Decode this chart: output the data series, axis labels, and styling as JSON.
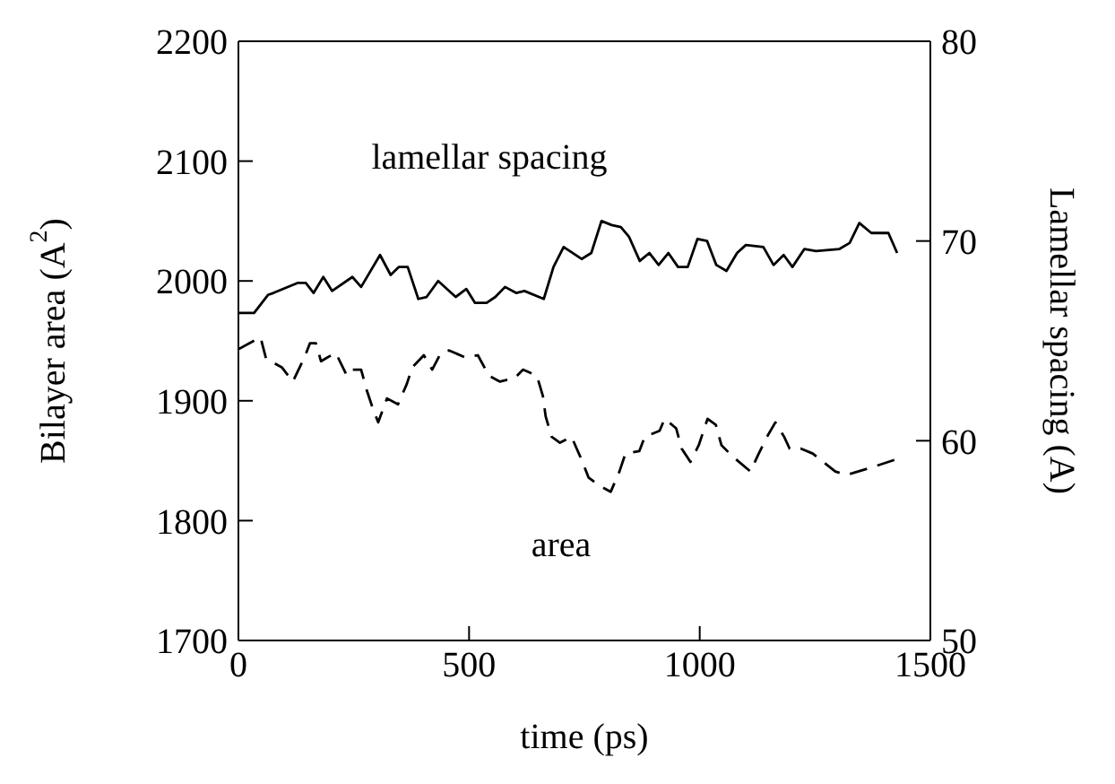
{
  "chart_data": {
    "type": "line",
    "xlabel": "time (ps)",
    "ylabel": "Bilayer area (A$^{2}$)",
    "y2label": "Lamellar spacing (A)",
    "xlim": [
      0,
      1500
    ],
    "xticks": [
      0,
      500,
      1000,
      1500
    ],
    "ylim": [
      1700,
      2200
    ],
    "yticks": [
      1700,
      1800,
      1900,
      2000,
      2100,
      2200
    ],
    "y2lim": [
      50,
      80
    ],
    "y2ticks": [
      50,
      60,
      70,
      80
    ],
    "grid": false,
    "legend": false,
    "marker": "none",
    "series": [
      {
        "axis": "y2",
        "color": "#000000",
        "line_style": "solid",
        "x": [
          0,
          34,
          64,
          76,
          128,
          146,
          163,
          184,
          203,
          247,
          266,
          307,
          330,
          348,
          367,
          390,
          408,
          433,
          471,
          494,
          513,
          538,
          557,
          578,
          602,
          620,
          662,
          683,
          705,
          744,
          765,
          787,
          809,
          829,
          847,
          870,
          891,
          911,
          932,
          953,
          974,
          995,
          1016,
          1036,
          1058,
          1081,
          1100,
          1138,
          1160,
          1182,
          1201,
          1227,
          1252,
          1303,
          1325,
          1346,
          1372,
          1409,
          1428
        ],
        "values": [
          66.4,
          66.4,
          67.3,
          67.4,
          67.9,
          67.9,
          67.4,
          68.2,
          67.5,
          68.2,
          67.7,
          69.3,
          68.3,
          68.7,
          68.7,
          67.1,
          67.2,
          68.0,
          67.2,
          67.6,
          66.9,
          66.9,
          67.2,
          67.7,
          67.4,
          67.5,
          67.1,
          68.7,
          69.7,
          69.1,
          69.4,
          71.0,
          70.8,
          70.7,
          70.2,
          69.0,
          69.4,
          68.8,
          69.4,
          68.7,
          68.7,
          70.1,
          70.0,
          68.8,
          68.5,
          69.4,
          69.8,
          69.7,
          68.8,
          69.3,
          68.7,
          69.6,
          69.5,
          69.6,
          69.9,
          70.9,
          70.4,
          70.4,
          69.4
        ]
      },
      {
        "axis": "y",
        "color": "#000000",
        "line_style": "dashed",
        "x": [
          0,
          48,
          60,
          94,
          118,
          143,
          155,
          168,
          179,
          192,
          211,
          235,
          248,
          266,
          278,
          291,
          303,
          322,
          346,
          365,
          377,
          402,
          420,
          439,
          457,
          493,
          519,
          543,
          567,
          599,
          617,
          647,
          660,
          666,
          679,
          697,
          722,
          746,
          759,
          783,
          807,
          826,
          839,
          869,
          881,
          913,
          924,
          949,
          961,
          980,
          998,
          1017,
          1035,
          1047,
          1073,
          1110,
          1128,
          1146,
          1164,
          1183,
          1195,
          1220,
          1245,
          1294,
          1318,
          1361,
          1425
        ],
        "values": [
          1943,
          1953,
          1935,
          1928,
          1916,
          1936,
          1948,
          1948,
          1933,
          1936,
          1940,
          1921,
          1926,
          1926,
          1909,
          1894,
          1882,
          1902,
          1897,
          1914,
          1928,
          1938,
          1926,
          1940,
          1942,
          1936,
          1938,
          1921,
          1916,
          1919,
          1926,
          1921,
          1904,
          1887,
          1870,
          1865,
          1870,
          1849,
          1836,
          1829,
          1824,
          1841,
          1856,
          1858,
          1870,
          1875,
          1885,
          1877,
          1860,
          1849,
          1863,
          1885,
          1880,
          1863,
          1853,
          1841,
          1856,
          1870,
          1882,
          1870,
          1860,
          1860,
          1856,
          1841,
          1838,
          1843,
          1851
        ]
      }
    ],
    "annotations": [
      "lamellar spacing",
      "area"
    ]
  }
}
